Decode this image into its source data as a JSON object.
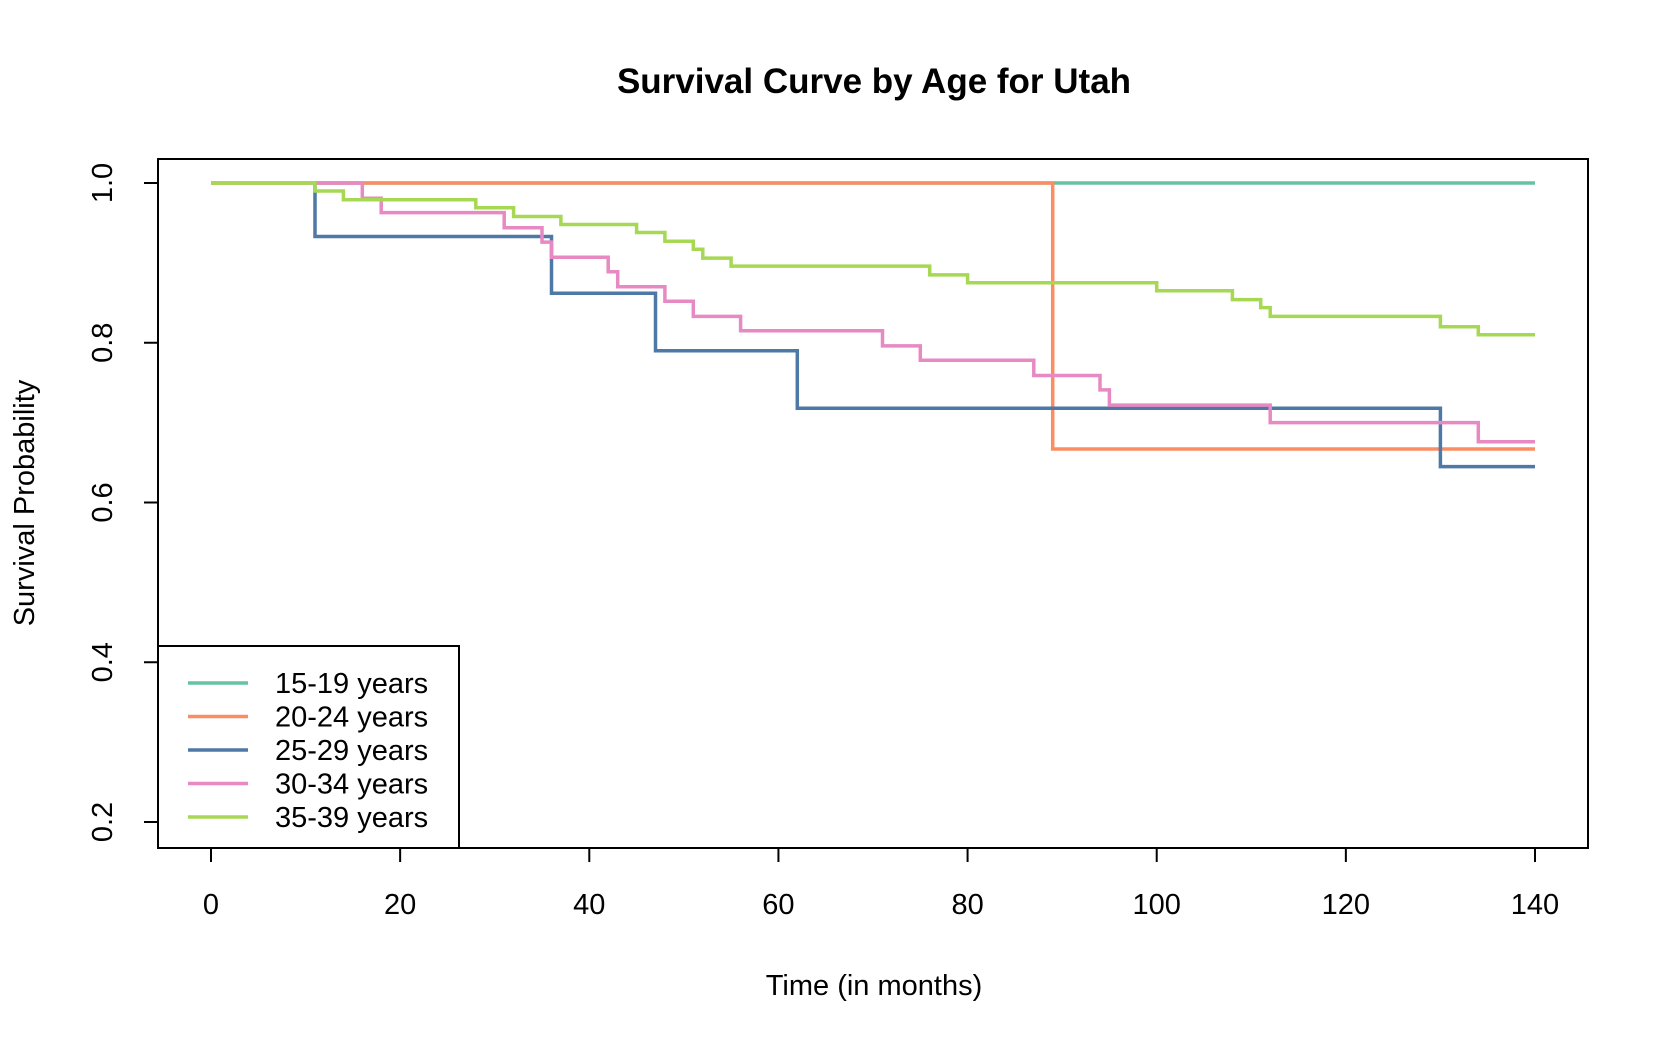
{
  "chart_data": {
    "type": "line",
    "title": "Survival Curve by Age for Utah",
    "xlabel": "Time (in months)",
    "ylabel": "Survival Probability",
    "xlim": [
      0,
      140
    ],
    "ylim": [
      0.2,
      1.0
    ],
    "xticks": [
      "0",
      "20",
      "40",
      "60",
      "80",
      "100",
      "120",
      "140"
    ],
    "yticks": [
      "0.2",
      "0.4",
      "0.6",
      "0.8",
      "1.0"
    ],
    "grid": false,
    "legend_position": "bottom-left",
    "series": [
      {
        "name": "15-19 years",
        "color": "#66c2a5",
        "step": true,
        "points": [
          [
            0,
            1.0
          ],
          [
            140,
            1.0
          ]
        ]
      },
      {
        "name": "20-24 years",
        "color": "#fc8d62",
        "step": true,
        "points": [
          [
            0,
            1.0
          ],
          [
            89,
            0.667
          ],
          [
            140,
            0.667
          ]
        ]
      },
      {
        "name": "25-29 years",
        "color": "#4e79a7",
        "step": true,
        "points": [
          [
            11,
            1.0
          ],
          [
            11,
            0.933
          ],
          [
            36,
            0.862
          ],
          [
            47,
            0.79
          ],
          [
            62,
            0.718
          ],
          [
            130,
            0.645
          ],
          [
            140,
            0.645
          ]
        ]
      },
      {
        "name": "30-34 years",
        "color": "#e78ac3",
        "step": true,
        "points": [
          [
            11,
            1.0
          ],
          [
            16,
            0.981
          ],
          [
            18,
            0.963
          ],
          [
            31,
            0.944
          ],
          [
            35,
            0.926
          ],
          [
            36,
            0.907
          ],
          [
            42,
            0.889
          ],
          [
            43,
            0.87
          ],
          [
            48,
            0.852
          ],
          [
            51,
            0.833
          ],
          [
            56,
            0.815
          ],
          [
            71,
            0.796
          ],
          [
            75,
            0.778
          ],
          [
            87,
            0.759
          ],
          [
            94,
            0.741
          ],
          [
            95,
            0.722
          ],
          [
            112,
            0.7
          ],
          [
            134,
            0.676
          ],
          [
            140,
            0.676
          ]
        ]
      },
      {
        "name": "35-39 years",
        "color": "#a6d854",
        "step": true,
        "points": [
          [
            0,
            1.0
          ],
          [
            11,
            0.99
          ],
          [
            14,
            0.979
          ],
          [
            28,
            0.969
          ],
          [
            32,
            0.958
          ],
          [
            37,
            0.948
          ],
          [
            45,
            0.938
          ],
          [
            48,
            0.927
          ],
          [
            51,
            0.917
          ],
          [
            52,
            0.906
          ],
          [
            55,
            0.896
          ],
          [
            76,
            0.885
          ],
          [
            80,
            0.875
          ],
          [
            100,
            0.865
          ],
          [
            108,
            0.854
          ],
          [
            111,
            0.844
          ],
          [
            112,
            0.833
          ],
          [
            130,
            0.82
          ],
          [
            134,
            0.81
          ],
          [
            140,
            0.81
          ]
        ]
      }
    ]
  }
}
